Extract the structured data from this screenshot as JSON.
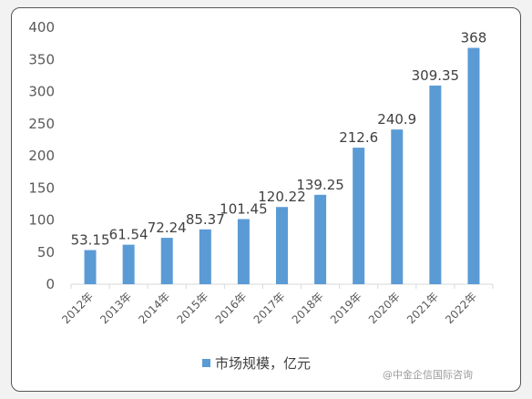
{
  "chart_data": {
    "type": "bar",
    "categories": [
      "2012年",
      "2013年",
      "2014年",
      "2015年",
      "2016年",
      "2017年",
      "2018年",
      "2019年",
      "2020年",
      "2021年",
      "2022年"
    ],
    "series": [
      {
        "name": "市场规模，亿元",
        "values": [
          53.15,
          61.54,
          72.24,
          85.37,
          101.45,
          120.22,
          139.25,
          212.6,
          240.9,
          309.35,
          368
        ]
      }
    ],
    "data_labels": [
      "53.15",
      "61.54",
      "72.24",
      "85.37",
      "101.45",
      "120.22",
      "139.25",
      "212.6",
      "240.9",
      "309.35",
      "368"
    ],
    "ylim": [
      0,
      400
    ],
    "yticks": [
      0,
      50,
      100,
      150,
      200,
      250,
      300,
      350,
      400
    ],
    "grid": false,
    "legend_position": "bottom",
    "bar_color": "#5b9bd5"
  },
  "watermark": "@中金企信国际咨询"
}
